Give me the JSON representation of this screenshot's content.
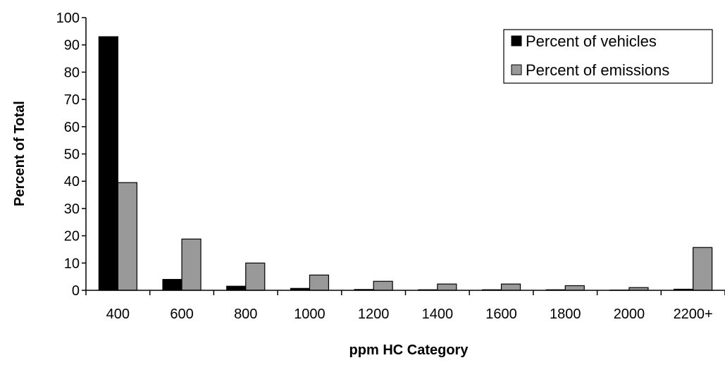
{
  "chart_data": {
    "type": "bar",
    "xlabel": "ppm HC Category",
    "ylabel": "Percent of Total",
    "categories": [
      "400",
      "600",
      "800",
      "1000",
      "1200",
      "1400",
      "1600",
      "1800",
      "2000",
      "2200+"
    ],
    "series": [
      {
        "name": "Percent of vehicles",
        "color": "#000000",
        "values": [
          93,
          4,
          1.5,
          0.7,
          0.3,
          0.2,
          0.2,
          0.2,
          0.1,
          0.4
        ]
      },
      {
        "name": "Percent of emissions",
        "color": "#999999",
        "values": [
          39.5,
          18.8,
          10,
          5.6,
          3.3,
          2.3,
          2.3,
          1.7,
          1,
          15.7
        ]
      }
    ],
    "ylim": [
      0,
      100
    ],
    "yticks": [
      "0",
      "10",
      "20",
      "30",
      "40",
      "50",
      "60",
      "70",
      "80",
      "90",
      "100"
    ],
    "grid": false,
    "legend_position": "top-right"
  }
}
